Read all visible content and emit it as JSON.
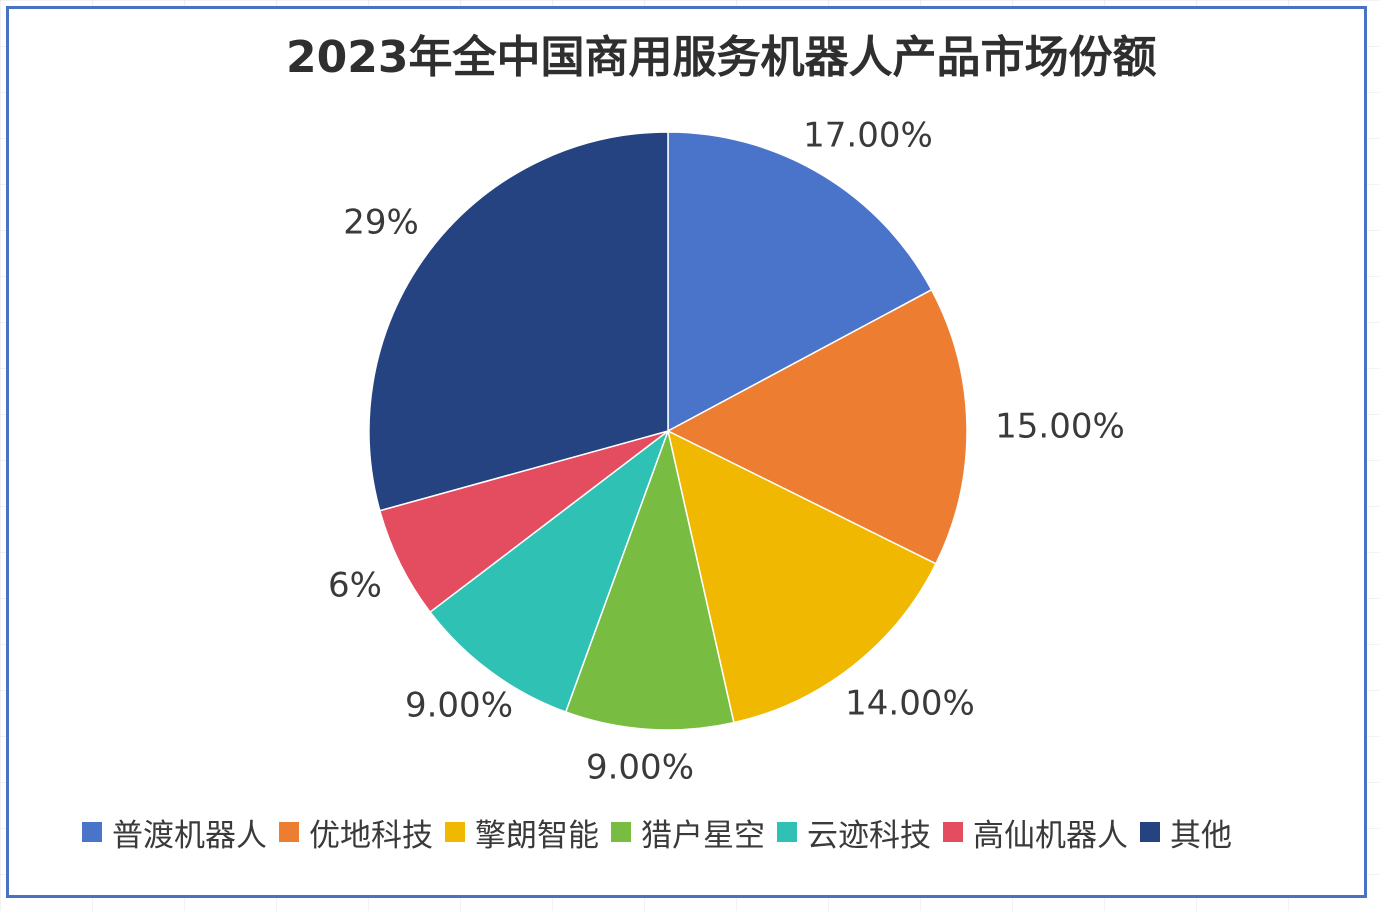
{
  "chart_data": {
    "type": "pie",
    "title": "2023年全中国商用服务机器人产品市场份额",
    "series": [
      {
        "name": "普渡机器人",
        "value": 17,
        "label": "17.00%",
        "color": "#4a74c9"
      },
      {
        "name": "优地科技",
        "value": 15,
        "label": "15.00%",
        "color": "#ed7d31"
      },
      {
        "name": "擎朗智能",
        "value": 14,
        "label": "14.00%",
        "color": "#f0b800"
      },
      {
        "name": "猎户星空",
        "value": 9,
        "label": "9.00%",
        "color": "#78bd42"
      },
      {
        "name": "云迹科技",
        "value": 9,
        "label": "9.00%",
        "color": "#2fc2b4"
      },
      {
        "name": "高仙机器人",
        "value": 6,
        "label": "6%",
        "color": "#e44d5f"
      },
      {
        "name": "其他",
        "value": 29,
        "label": "29%",
        "color": "#254381"
      }
    ],
    "legend_position": "bottom"
  }
}
